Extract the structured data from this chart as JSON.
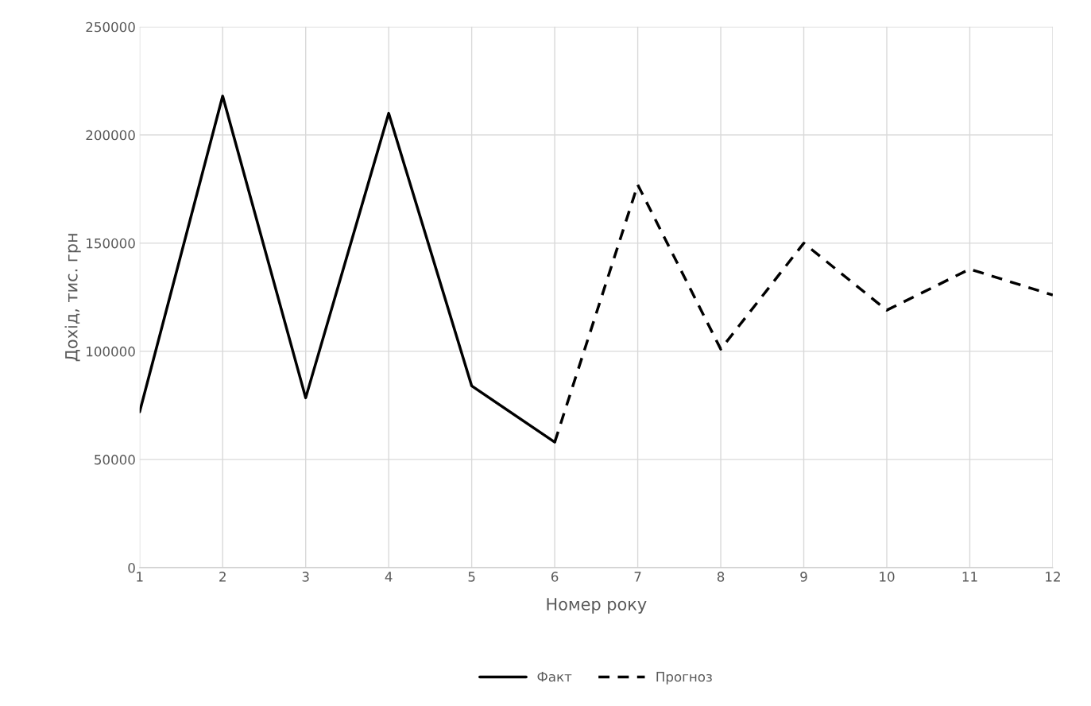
{
  "chart_data": {
    "type": "line",
    "xlabel": "Номер року",
    "ylabel": "Дохід, тис. грн",
    "xlim": [
      1,
      12
    ],
    "xticks": [
      1,
      2,
      3,
      4,
      5,
      6,
      7,
      8,
      9,
      10,
      11,
      12
    ],
    "ylim": [
      0,
      250000
    ],
    "yticks": [
      0,
      50000,
      100000,
      150000,
      200000,
      250000
    ],
    "grid": true,
    "legend": "bottom",
    "series": [
      {
        "name": "Факт",
        "color": "#000000",
        "line_style": "solid",
        "x": [
          1,
          2,
          3,
          4,
          5,
          6
        ],
        "values": [
          72000,
          218000,
          78500,
          210000,
          84000,
          58000
        ]
      },
      {
        "name": "Прогноз",
        "color": "#000000",
        "line_style": "dashed",
        "x": [
          6,
          7,
          8,
          9,
          10,
          11,
          12
        ],
        "values": [
          58000,
          177000,
          101000,
          150000,
          119000,
          138000,
          126000
        ]
      }
    ]
  }
}
